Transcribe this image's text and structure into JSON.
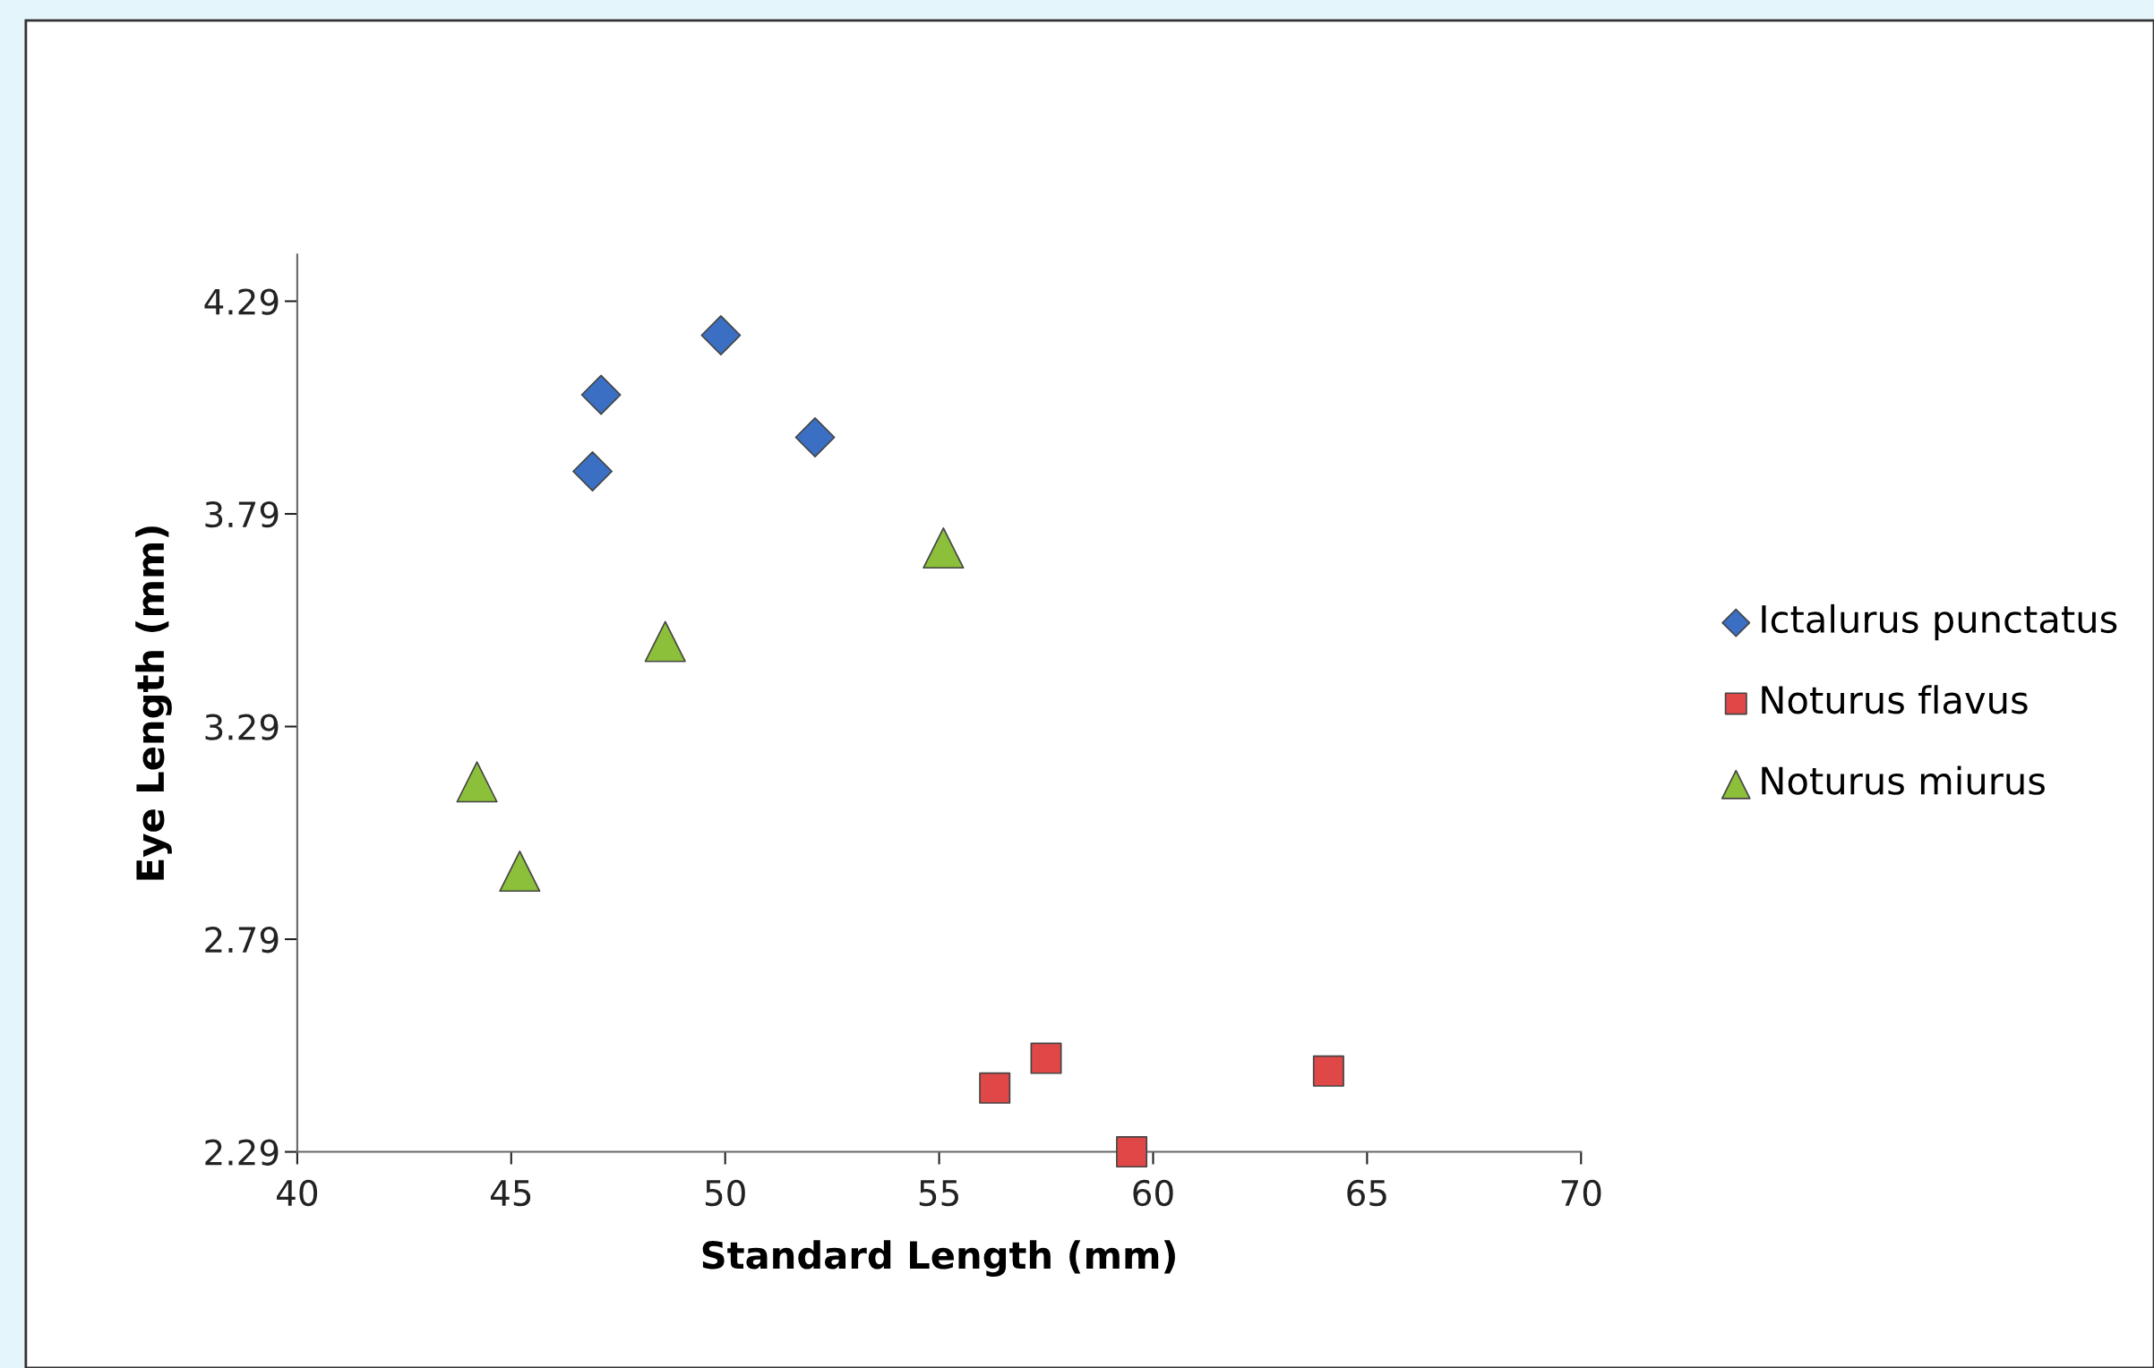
{
  "chart_data": {
    "type": "scatter",
    "xlabel": "Standard Length (mm)",
    "ylabel": "Eye Length (mm)",
    "xlim": [
      40,
      70
    ],
    "xticks": [
      40,
      45,
      50,
      55,
      60,
      65,
      70
    ],
    "ylim": [
      2.29,
      4.4
    ],
    "yticks": [
      2.29,
      2.79,
      3.29,
      3.79,
      4.29
    ],
    "grid": false,
    "legend": "right",
    "series": [
      {
        "name": "Ictalurus punctatus",
        "color": "#3a6fc4",
        "marker": "diamond",
        "x": [
          47.1,
          46.9,
          49.9,
          52.1
        ],
        "values": [
          4.07,
          3.89,
          4.21,
          3.97
        ]
      },
      {
        "name": "Noturus flavus",
        "color": "#e04848",
        "marker": "square",
        "x": [
          56.3,
          57.5,
          59.5,
          64.1
        ],
        "values": [
          2.44,
          2.51,
          2.29,
          2.48
        ]
      },
      {
        "name": "Noturus miurus",
        "color": "#8cbf3a",
        "marker": "triangle",
        "x": [
          44.2,
          45.2,
          48.6,
          55.1
        ],
        "values": [
          3.16,
          2.95,
          3.49,
          3.71
        ]
      }
    ]
  }
}
